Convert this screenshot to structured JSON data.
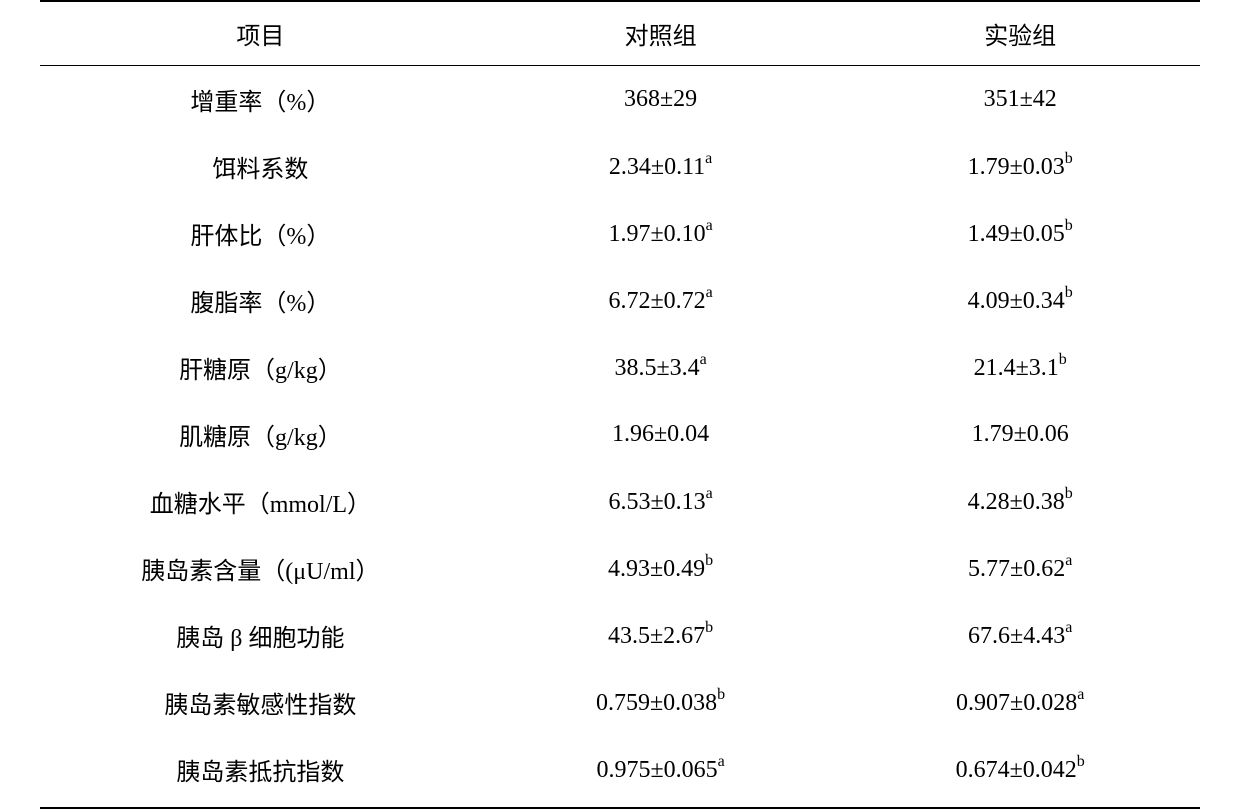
{
  "table": {
    "headers": {
      "item": "项目",
      "control": "对照组",
      "experiment": "实验组"
    },
    "rows": [
      {
        "item": "增重率（%）",
        "control_val": "368±29",
        "control_sup": "",
        "experiment_val": "351±42",
        "experiment_sup": ""
      },
      {
        "item": "饵料系数",
        "control_val": "2.34±0.11",
        "control_sup": "a",
        "experiment_val": "1.79±0.03",
        "experiment_sup": "b"
      },
      {
        "item": "肝体比（%）",
        "control_val": "1.97±0.10",
        "control_sup": "a",
        "experiment_val": "1.49±0.05",
        "experiment_sup": "b"
      },
      {
        "item": "腹脂率（%）",
        "control_val": "6.72±0.72",
        "control_sup": "a",
        "experiment_val": "4.09±0.34",
        "experiment_sup": "b"
      },
      {
        "item": "肝糖原（g/kg）",
        "control_val": "38.5±3.4",
        "control_sup": "a",
        "experiment_val": "21.4±3.1",
        "experiment_sup": "b"
      },
      {
        "item": "肌糖原（g/kg）",
        "control_val": "1.96±0.04",
        "control_sup": "",
        "experiment_val": "1.79±0.06",
        "experiment_sup": ""
      },
      {
        "item": "血糖水平（mmol/L）",
        "control_val": "6.53±0.13",
        "control_sup": "a",
        "experiment_val": "4.28±0.38",
        "experiment_sup": "b"
      },
      {
        "item": "胰岛素含量（(μU/ml）",
        "control_val": "4.93±0.49",
        "control_sup": "b",
        "experiment_val": "5.77±0.62",
        "experiment_sup": "a"
      },
      {
        "item": "胰岛 β 细胞功能",
        "control_val": "43.5±2.67",
        "control_sup": "b",
        "experiment_val": "67.6±4.43",
        "experiment_sup": "a"
      },
      {
        "item": "胰岛素敏感性指数",
        "control_val": "0.759±0.038",
        "control_sup": "b",
        "experiment_val": "0.907±0.028",
        "experiment_sup": "a"
      },
      {
        "item": "胰岛素抵抗指数",
        "control_val": "0.975±0.065",
        "control_sup": "a",
        "experiment_val": "0.674±0.042",
        "experiment_sup": "b"
      }
    ],
    "styling": {
      "font_family": "SimSun",
      "font_size_body": 24,
      "font_size_sup": 16,
      "text_color": "#000000",
      "background_color": "#ffffff",
      "border_color": "#000000",
      "top_border_width": 2,
      "header_bottom_border_width": 1.5,
      "bottom_border_width": 2,
      "row_padding_vertical": 16,
      "column_widths_pct": [
        38,
        31,
        31
      ],
      "alignment": "center"
    }
  }
}
